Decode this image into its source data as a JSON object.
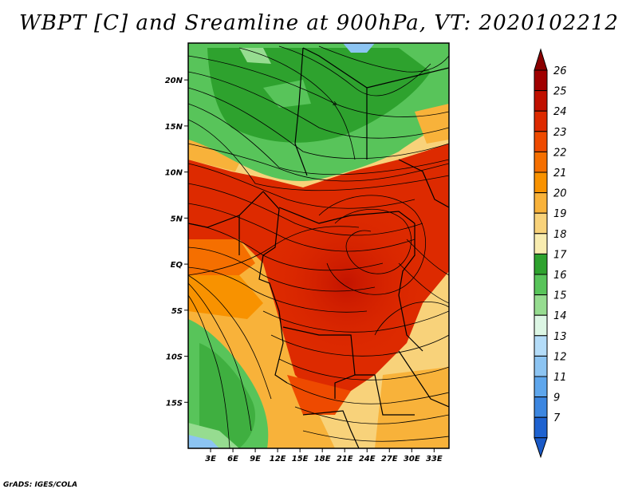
{
  "title": "WBPT [C] and Sreamline at 900hPa, VT: 2020102212",
  "credit": "GrADS: IGES/COLA",
  "map": {
    "lon_range": [
      0,
      35
    ],
    "lat_range": [
      -20,
      24
    ],
    "lat_ticks": [
      {
        "value": 20,
        "label": "20N"
      },
      {
        "value": 15,
        "label": "15N"
      },
      {
        "value": 10,
        "label": "10N"
      },
      {
        "value": 5,
        "label": "5N"
      },
      {
        "value": 0,
        "label": "EQ"
      },
      {
        "value": -5,
        "label": "5S"
      },
      {
        "value": -10,
        "label": "10S"
      },
      {
        "value": -15,
        "label": "15S"
      }
    ],
    "lon_ticks": [
      {
        "value": 3,
        "label": "3E"
      },
      {
        "value": 6,
        "label": "6E"
      },
      {
        "value": 9,
        "label": "9E"
      },
      {
        "value": 12,
        "label": "12E"
      },
      {
        "value": 15,
        "label": "15E"
      },
      {
        "value": 18,
        "label": "18E"
      },
      {
        "value": 21,
        "label": "21E"
      },
      {
        "value": 24,
        "label": "24E"
      },
      {
        "value": 27,
        "label": "27E"
      },
      {
        "value": 30,
        "label": "30E"
      },
      {
        "value": 33,
        "label": "33E"
      }
    ]
  },
  "colorbar": {
    "levels": [
      {
        "label": "26",
        "color": "#a00000"
      },
      {
        "label": "25",
        "color": "#c01000"
      },
      {
        "label": "24",
        "color": "#dd2a00"
      },
      {
        "label": "23",
        "color": "#ee4a00"
      },
      {
        "label": "22",
        "color": "#f56f00"
      },
      {
        "label": "21",
        "color": "#f89200"
      },
      {
        "label": "20",
        "color": "#f8b23a"
      },
      {
        "label": "19",
        "color": "#f8d27a"
      },
      {
        "label": "18",
        "color": "#f8ecb0"
      },
      {
        "label": "17",
        "color": "#2ea22e"
      },
      {
        "label": "16",
        "color": "#58c45a"
      },
      {
        "label": "15",
        "color": "#96dc90"
      },
      {
        "label": "14",
        "color": "#dcf6e4"
      },
      {
        "label": "13",
        "color": "#b4dcf8"
      },
      {
        "label": "12",
        "color": "#8cc4f2"
      },
      {
        "label": "11",
        "color": "#5ea6ec"
      },
      {
        "label": "9",
        "color": "#3c86e0"
      },
      {
        "label": "7",
        "color": "#1e62d0"
      }
    ],
    "top_cap_color": "#8a0000",
    "bottom_cap_color": "#1a5ac8"
  }
}
